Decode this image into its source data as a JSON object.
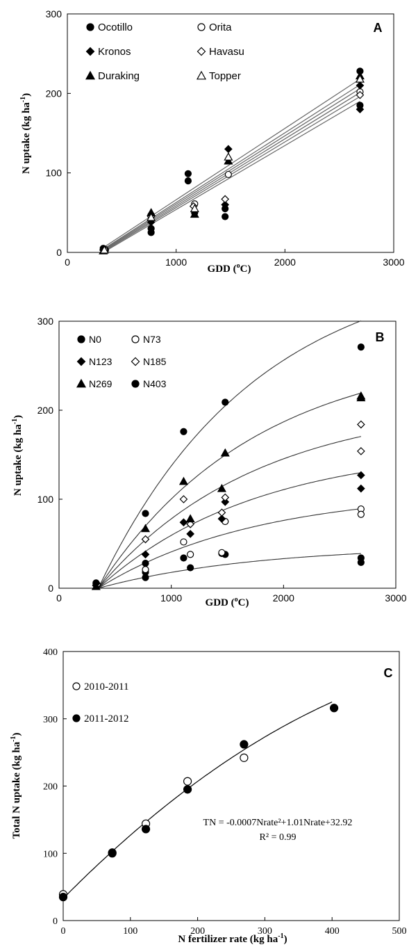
{
  "chart_data": [
    {
      "type": "scatter",
      "panel_label": "A",
      "xlabel_main": "GDD (",
      "xlabel_sup": "o",
      "xlabel_end": "C)",
      "ylabel_main": "N uptake (kg ha",
      "ylabel_sup": "-1",
      "ylabel_end": ")",
      "xlim": [
        0,
        3000
      ],
      "ylim": [
        0,
        300
      ],
      "xticks": [
        "0",
        "1000",
        "2000",
        "3000"
      ],
      "yticks": [
        "0",
        "100",
        "200",
        "300"
      ],
      "legend_placement": "top-left",
      "legend": [
        {
          "name": "Ocotillo",
          "marker": "circle-filled"
        },
        {
          "name": "Orita",
          "marker": "circle-open"
        },
        {
          "name": "Kronos",
          "marker": "diamond-filled"
        },
        {
          "name": "Havasu",
          "marker": "diamond-open"
        },
        {
          "name": "Duraking",
          "marker": "triangle-filled"
        },
        {
          "name": "Topper",
          "marker": "triangle-open"
        }
      ],
      "series": [
        {
          "name": "Ocotillo",
          "marker": "circle-filled",
          "points": [
            [
              330,
              5
            ],
            [
              350,
              3
            ],
            [
              770,
              25
            ],
            [
              770,
              30
            ],
            [
              1110,
              99
            ],
            [
              1110,
              90
            ],
            [
              1170,
              50
            ],
            [
              1450,
              45
            ],
            [
              1450,
              55
            ],
            [
              2690,
              228
            ],
            [
              2690,
              185
            ]
          ]
        },
        {
          "name": "Orita",
          "marker": "circle-open",
          "points": [
            [
              345,
              4
            ],
            [
              770,
              47
            ],
            [
              1170,
              61
            ],
            [
              1480,
              98
            ],
            [
              2690,
              202
            ]
          ]
        },
        {
          "name": "Kronos",
          "marker": "diamond-filled",
          "points": [
            [
              330,
              3
            ],
            [
              770,
              38
            ],
            [
              1170,
              52
            ],
            [
              1480,
              130
            ],
            [
              1450,
              60
            ],
            [
              2690,
              210
            ],
            [
              2690,
              180
            ]
          ]
        },
        {
          "name": "Havasu",
          "marker": "diamond-open",
          "points": [
            [
              340,
              4
            ],
            [
              770,
              45
            ],
            [
              1160,
              58
            ],
            [
              1450,
              67
            ],
            [
              2690,
              198
            ]
          ]
        },
        {
          "name": "Duraking",
          "marker": "triangle-filled",
          "points": [
            [
              330,
              2
            ],
            [
              770,
              50
            ],
            [
              1170,
              48
            ],
            [
              1480,
              115
            ],
            [
              2690,
              222
            ]
          ]
        },
        {
          "name": "Topper",
          "marker": "triangle-open",
          "points": [
            [
              340,
              3
            ],
            [
              770,
              44
            ],
            [
              1170,
              55
            ],
            [
              1480,
              120
            ],
            [
              2690,
              218
            ]
          ]
        }
      ],
      "fit_lines": [
        [
          [
            330,
            0
          ],
          [
            2690,
            190
          ]
        ],
        [
          [
            330,
            1
          ],
          [
            2690,
            196
          ]
        ],
        [
          [
            330,
            2
          ],
          [
            2690,
            201
          ]
        ],
        [
          [
            330,
            3
          ],
          [
            2690,
            206
          ]
        ],
        [
          [
            330,
            4
          ],
          [
            2690,
            211
          ]
        ],
        [
          [
            330,
            6
          ],
          [
            2690,
            218
          ]
        ]
      ]
    },
    {
      "type": "scatter",
      "panel_label": "B",
      "xlabel_main": "GDD (",
      "xlabel_sup": "o",
      "xlabel_end": "C)",
      "ylabel_main": "N uptake (kg ha",
      "ylabel_sup": "-1",
      "ylabel_end": ")",
      "xlim": [
        0,
        3000
      ],
      "ylim": [
        0,
        300
      ],
      "xticks": [
        "0",
        "1000",
        "2000",
        "3000"
      ],
      "yticks": [
        "0",
        "100",
        "200",
        "300"
      ],
      "legend_placement": "top-left",
      "legend": [
        {
          "name": "N0",
          "marker": "circle-filled"
        },
        {
          "name": "N73",
          "marker": "circle-open"
        },
        {
          "name": "N123",
          "marker": "diamond-filled"
        },
        {
          "name": "N185",
          "marker": "diamond-open"
        },
        {
          "name": "N269",
          "marker": "triangle-filled"
        },
        {
          "name": "N403",
          "marker": "circle-filled"
        }
      ],
      "series": [
        {
          "name": "N0",
          "marker": "circle-filled",
          "points": [
            [
              330,
              5
            ],
            [
              770,
              12
            ],
            [
              770,
              18
            ],
            [
              1110,
              34
            ],
            [
              1170,
              23
            ],
            [
              1450,
              39
            ],
            [
              1480,
              38
            ],
            [
              2690,
              29
            ],
            [
              2690,
              34
            ]
          ]
        },
        {
          "name": "N73",
          "marker": "circle-open",
          "points": [
            [
              340,
              4
            ],
            [
              770,
              21
            ],
            [
              1110,
              52
            ],
            [
              1170,
              38
            ],
            [
              1450,
              40
            ],
            [
              1480,
              75
            ],
            [
              2690,
              89
            ],
            [
              2690,
              83
            ]
          ]
        },
        {
          "name": "N123",
          "marker": "diamond-filled",
          "points": [
            [
              330,
              3
            ],
            [
              770,
              38
            ],
            [
              1110,
              74
            ],
            [
              1170,
              61
            ],
            [
              1450,
              78
            ],
            [
              1480,
              97
            ],
            [
              2690,
              127
            ],
            [
              2690,
              112
            ]
          ]
        },
        {
          "name": "N185",
          "marker": "diamond-open",
          "points": [
            [
              340,
              4
            ],
            [
              770,
              55
            ],
            [
              1110,
              100
            ],
            [
              1170,
              72
            ],
            [
              1450,
              85
            ],
            [
              1480,
              102
            ],
            [
              2690,
              184
            ],
            [
              2690,
              154
            ]
          ]
        },
        {
          "name": "N269",
          "marker": "triangle-filled",
          "points": [
            [
              330,
              2
            ],
            [
              770,
              67
            ],
            [
              1110,
              120
            ],
            [
              1170,
              78
            ],
            [
              1450,
              112
            ],
            [
              1480,
              152
            ],
            [
              2690,
              214
            ],
            [
              2690,
              216
            ]
          ]
        },
        {
          "name": "N403",
          "marker": "circle-filled",
          "points": [
            [
              330,
              6
            ],
            [
              770,
              84
            ],
            [
              770,
              28
            ],
            [
              1110,
              176
            ],
            [
              1480,
              209
            ],
            [
              2690,
              271
            ]
          ]
        }
      ],
      "fit_curves": [
        {
          "asymptote": 48,
          "start": 350
        },
        {
          "asymptote": 110,
          "start": 350
        },
        {
          "asymptote": 160,
          "start": 350
        },
        {
          "asymptote": 210,
          "start": 350
        },
        {
          "asymptote": 270,
          "start": 350
        },
        {
          "asymptote": 370,
          "start": 350
        }
      ]
    },
    {
      "type": "scatter",
      "panel_label": "C",
      "xlabel_main": "N fertilizer rate (kg ha",
      "xlabel_sup": "-1",
      "xlabel_end": ")",
      "ylabel_main": "Total N uptake (kg ha",
      "ylabel_sup": "-1",
      "ylabel_end": ")",
      "xlim": [
        0,
        500
      ],
      "ylim": [
        0,
        400
      ],
      "xticks": [
        "0",
        "100",
        "200",
        "300",
        "400",
        "500"
      ],
      "yticks": [
        "0",
        "100",
        "200",
        "300",
        "400"
      ],
      "legend_placement": "top-left",
      "legend": [
        {
          "name": "2010-2011",
          "marker": "circle-open"
        },
        {
          "name": "2011-2012",
          "marker": "circle-filled"
        }
      ],
      "series": [
        {
          "name": "2010-2011",
          "marker": "circle-open",
          "points": [
            [
              0,
              39
            ],
            [
              73,
              101
            ],
            [
              123,
              144
            ],
            [
              185,
              207
            ],
            [
              269,
              242
            ]
          ]
        },
        {
          "name": "2011-2012",
          "marker": "circle-filled",
          "points": [
            [
              0,
              35
            ],
            [
              73,
              100
            ],
            [
              123,
              136
            ],
            [
              185,
              195
            ],
            [
              269,
              262
            ],
            [
              403,
              316
            ]
          ]
        }
      ],
      "equation": "TN = -0.0007Nrate²+1.01Nrate+32.92",
      "r2": "R² = 0.99",
      "fit": {
        "a": -0.0007,
        "b": 1.01,
        "c": 32.92,
        "xmin": 0,
        "xmax": 403
      }
    }
  ]
}
